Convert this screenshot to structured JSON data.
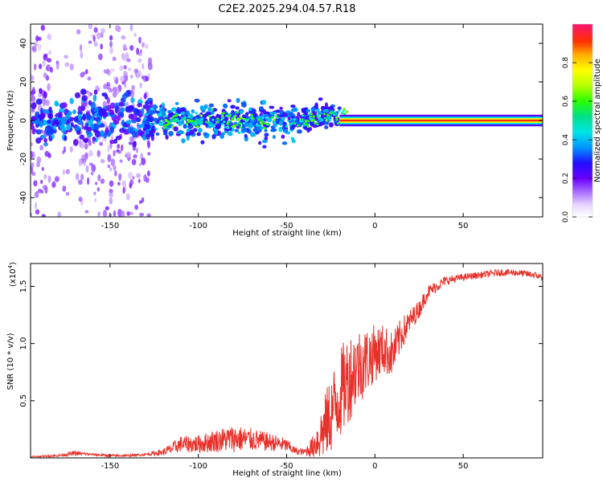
{
  "title": "C2E2.2025.294.04.57.R18",
  "colors": {
    "line": "#e8312a",
    "axis": "#000000",
    "background": "#ffffff"
  },
  "chart_data": [
    {
      "type": "heatmap",
      "title": "C2E2.2025.294.04.57.R18",
      "xlabel": "Height of straight line (km)",
      "ylabel": "Frequency (Hz)",
      "xlim": [
        -195,
        95
      ],
      "ylim": [
        -50,
        50
      ],
      "xticks": [
        -150,
        -100,
        -50,
        0,
        50
      ],
      "yticks": [
        -40,
        -20,
        0,
        20,
        40
      ],
      "colorbar": {
        "label": "Normalized spectral amplitude",
        "range": [
          0,
          1
        ],
        "ticks": [
          0.0,
          0.2,
          0.4,
          0.6,
          0.8
        ],
        "tick_labels": [
          "0.0",
          "0.2",
          "0.4",
          "0.6",
          "0.8"
        ],
        "colormap": "rainbow"
      },
      "features": [
        {
          "x_range": [
            -195,
            -130
          ],
          "y_range": [
            -50,
            50
          ],
          "amplitude": 0.15,
          "description": "diffuse scatter"
        },
        {
          "x_range": [
            -130,
            -20
          ],
          "y_center": 0,
          "y_spread": 6,
          "amplitude": 0.45,
          "description": "broad band"
        },
        {
          "x_range": [
            -20,
            95
          ],
          "y_center": 0,
          "y_spread": 1.5,
          "amplitude": 0.95,
          "description": "narrow carrier line"
        }
      ]
    },
    {
      "type": "line",
      "xlabel": "Height of straight line (km)",
      "ylabel": "SNR (10 * v/v)",
      "yscale_label": "(x10",
      "yscale_exp": "4",
      "yscale_close": ")",
      "xlim": [
        -195,
        95
      ],
      "ylim": [
        0,
        1.7
      ],
      "xticks": [
        -150,
        -100,
        -50,
        0,
        50
      ],
      "yticks": [
        0.5,
        1.0,
        1.5
      ],
      "ytick_labels": [
        "0.5",
        "1.0",
        "1.5"
      ],
      "series": [
        {
          "name": "SNR",
          "x": [
            -195,
            -180,
            -170,
            -160,
            -150,
            -140,
            -130,
            -120,
            -115,
            -110,
            -100,
            -90,
            -80,
            -70,
            -60,
            -50,
            -45,
            -40,
            -35,
            -30,
            -25,
            -20,
            -15,
            -10,
            -5,
            0,
            5,
            10,
            15,
            20,
            25,
            30,
            40,
            50,
            60,
            70,
            80,
            90,
            95
          ],
          "mean": [
            0.01,
            0.02,
            0.04,
            0.03,
            0.02,
            0.02,
            0.03,
            0.05,
            0.08,
            0.12,
            0.12,
            0.15,
            0.17,
            0.16,
            0.14,
            0.11,
            0.06,
            0.05,
            0.1,
            0.22,
            0.38,
            0.55,
            0.7,
            0.8,
            0.85,
            0.92,
            0.95,
            0.9,
            1.08,
            1.2,
            1.3,
            1.45,
            1.55,
            1.58,
            1.6,
            1.62,
            1.62,
            1.6,
            1.58
          ],
          "noise": [
            0.005,
            0.01,
            0.02,
            0.01,
            0.01,
            0.01,
            0.01,
            0.03,
            0.05,
            0.07,
            0.08,
            0.1,
            0.12,
            0.1,
            0.08,
            0.06,
            0.03,
            0.03,
            0.1,
            0.25,
            0.35,
            0.4,
            0.4,
            0.35,
            0.3,
            0.25,
            0.22,
            0.2,
            0.15,
            0.1,
            0.08,
            0.06,
            0.04,
            0.03,
            0.03,
            0.03,
            0.03,
            0.03,
            0.03
          ]
        }
      ]
    }
  ]
}
